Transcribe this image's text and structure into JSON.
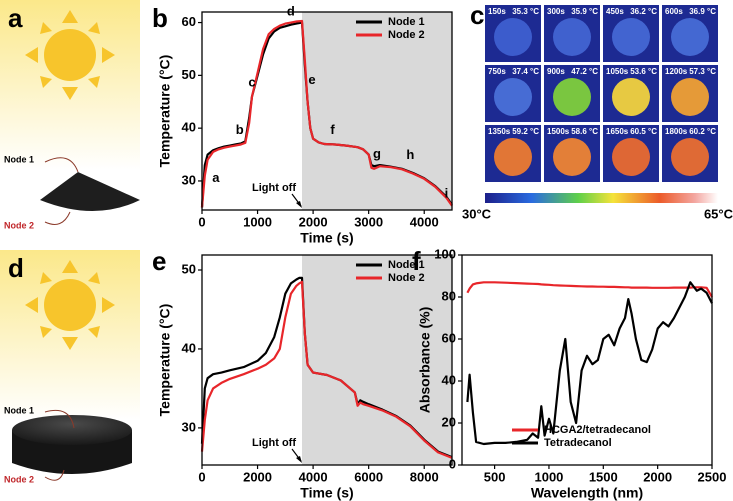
{
  "panels": {
    "a": {
      "letter": "a",
      "node1": "Node 1",
      "node2": "Node 2"
    },
    "c": {
      "letter": "c",
      "scale_min": "30°C",
      "scale_max": "65°C",
      "cells": [
        {
          "time": "150s",
          "temp": "35.3 °C",
          "color": "#3e5fd0"
        },
        {
          "time": "300s",
          "temp": "35.9 °C",
          "color": "#4264d2"
        },
        {
          "time": "450s",
          "temp": "36.2 °C",
          "color": "#4467d4"
        },
        {
          "time": "600s",
          "temp": "36.9 °C",
          "color": "#476bd6"
        },
        {
          "time": "750s",
          "temp": "37.4 °C",
          "color": "#4a70d8"
        },
        {
          "time": "900s",
          "temp": "47.2 °C",
          "color": "#7fcf3c"
        },
        {
          "time": "1050s",
          "temp": "53.6 °C",
          "color": "#f2d23e"
        },
        {
          "time": "1200s",
          "temp": "57.3 °C",
          "color": "#f0a034"
        },
        {
          "time": "1350s",
          "temp": "59.2 °C",
          "color": "#ec7a32"
        },
        {
          "time": "1500s",
          "temp": "58.6 °C",
          "color": "#ee8434"
        },
        {
          "time": "1650s",
          "temp": "60.5 °C",
          "color": "#e96a30"
        },
        {
          "time": "1800s",
          "temp": "60.2 °C",
          "color": "#ea6e30"
        }
      ]
    },
    "d": {
      "letter": "d",
      "node1": "Node 1",
      "node2": "Node 2"
    }
  },
  "chart_data": [
    {
      "type": "line",
      "panel_label": "b",
      "xlabel": "Time (s)",
      "ylabel": "Temperature (°C)",
      "xlim": [
        0,
        4500
      ],
      "ylim": [
        24.5,
        62
      ],
      "xticks": [
        0,
        1000,
        2000,
        3000,
        4000
      ],
      "yticks": [
        30,
        40,
        50,
        60
      ],
      "shade_from": 1800,
      "shade_color": "#d9d9d9",
      "light_label": "Light off",
      "legend": "upper right",
      "annotations": [
        "a",
        "b",
        "c",
        "d",
        "e",
        "f",
        "g",
        "h",
        "i"
      ],
      "x": [
        0,
        50,
        100,
        200,
        300,
        400,
        500,
        600,
        700,
        780,
        850,
        900,
        1000,
        1100,
        1200,
        1300,
        1400,
        1500,
        1600,
        1700,
        1800,
        1850,
        1900,
        1950,
        2000,
        2100,
        2200,
        2400,
        2600,
        2800,
        2900,
        3000,
        3050,
        3100,
        3200,
        3400,
        3600,
        3800,
        4000,
        4200,
        4400,
        4500
      ],
      "series": [
        {
          "name": "Node 1",
          "color": "#000000",
          "values": [
            25,
            33,
            35,
            35.8,
            36.2,
            36.5,
            36.7,
            36.9,
            37.1,
            37.5,
            42,
            46,
            50,
            54,
            57,
            58.3,
            59,
            59.3,
            59.6,
            59.8,
            60,
            52,
            45,
            40,
            38,
            37.3,
            37,
            36.9,
            36.7,
            36.4,
            36,
            35,
            33,
            32.8,
            33,
            32.7,
            32.3,
            31.5,
            30.5,
            29,
            27,
            25.5
          ]
        },
        {
          "name": "Node 2",
          "color": "#e8262a",
          "values": [
            25,
            31,
            34,
            35.5,
            36,
            36.3,
            36.5,
            36.7,
            36.9,
            37.2,
            41,
            46,
            50.5,
            55,
            57.8,
            58.8,
            59.4,
            59.8,
            60,
            60.2,
            60.3,
            53,
            45,
            40,
            38,
            37.3,
            37,
            36.9,
            36.7,
            36.4,
            36,
            35,
            32.5,
            32.3,
            32.8,
            32.6,
            32.2,
            31.4,
            30.4,
            28.9,
            26.8,
            25.3
          ]
        }
      ]
    },
    {
      "type": "line",
      "panel_label": "e",
      "xlabel": "Time (s)",
      "ylabel": "Temperature (°C)",
      "xlim": [
        0,
        9000
      ],
      "ylim": [
        25.3,
        51.9
      ],
      "xticks": [
        0,
        2000,
        4000,
        6000,
        8000
      ],
      "yticks": [
        30,
        40,
        50
      ],
      "shade_from": 3600,
      "shade_color": "#d9d9d9",
      "light_label": "Light off",
      "legend": "upper right",
      "x": [
        0,
        100,
        200,
        400,
        700,
        1000,
        1500,
        2000,
        2300,
        2600,
        2800,
        3000,
        3200,
        3400,
        3500,
        3600,
        3700,
        3800,
        4000,
        4500,
        5000,
        5500,
        5600,
        5700,
        5800,
        6000,
        6500,
        7000,
        7500,
        8000,
        8500,
        9000
      ],
      "series": [
        {
          "name": "Node 1",
          "color": "#000000",
          "values": [
            28,
            35,
            36.3,
            36.8,
            37,
            37.3,
            37.7,
            38.5,
            39.5,
            41.5,
            44,
            47,
            48.3,
            48.8,
            49,
            49,
            42,
            38,
            37,
            36.7,
            36,
            34.5,
            33,
            33.5,
            33.3,
            33,
            32.3,
            31.5,
            30.3,
            28.5,
            27,
            26.3
          ]
        },
        {
          "name": "Node 2",
          "color": "#e8262a",
          "values": [
            27,
            31,
            33.5,
            35,
            35.7,
            36.2,
            36.8,
            37.5,
            38,
            38.8,
            40,
            44,
            47,
            48,
            48.3,
            48.5,
            42,
            38,
            37,
            36.7,
            36,
            34.5,
            32.8,
            33.2,
            33,
            32.8,
            32.2,
            31.4,
            30.2,
            28.4,
            26.9,
            26.2
          ]
        }
      ]
    },
    {
      "type": "line",
      "panel_label": "f",
      "xlabel": "Wavelength (nm)",
      "ylabel": "Absorbance (%)",
      "xlim": [
        200,
        2500
      ],
      "ylim": [
        0,
        100
      ],
      "xticks": [
        500,
        1000,
        1500,
        2000,
        2500
      ],
      "yticks": [
        0,
        20,
        40,
        60,
        80,
        100
      ],
      "legend": "lower center",
      "x": [
        250,
        270,
        300,
        330,
        400,
        500,
        600,
        700,
        800,
        850,
        900,
        930,
        960,
        1000,
        1040,
        1100,
        1150,
        1200,
        1250,
        1300,
        1350,
        1400,
        1450,
        1500,
        1550,
        1600,
        1650,
        1700,
        1730,
        1760,
        1800,
        1850,
        1900,
        1950,
        2000,
        2050,
        2100,
        2150,
        2200,
        2250,
        2300,
        2330,
        2360,
        2400,
        2450,
        2500
      ],
      "series": [
        {
          "name": "HCGA2/tetradecanol",
          "color": "#e8262a",
          "values": [
            82,
            84,
            86,
            86.5,
            87,
            87,
            86.8,
            86.6,
            86.4,
            86.3,
            86.2,
            86,
            85.9,
            85.8,
            85.6,
            85.5,
            85.4,
            85.3,
            85.2,
            85.1,
            85,
            85,
            84.9,
            84.9,
            84.8,
            84.8,
            84.7,
            84.6,
            84.6,
            84.5,
            84.5,
            84.5,
            84.5,
            84.4,
            84.4,
            84.4,
            84.4,
            84.5,
            84.5,
            84.5,
            84.5,
            84.6,
            84.6,
            84.6,
            84.4,
            80
          ]
        },
        {
          "name": "Tetradecanol",
          "color": "#000000",
          "values": [
            30,
            43,
            25,
            11,
            10,
            10.5,
            10.5,
            11,
            12,
            15,
            13,
            28,
            14,
            22,
            15,
            45,
            60,
            30,
            20,
            45,
            52,
            48,
            50,
            60,
            62,
            57,
            65,
            70,
            79,
            72,
            60,
            50,
            49,
            55,
            65,
            68,
            66,
            70,
            75,
            80,
            87,
            85,
            83,
            84,
            82,
            77
          ]
        }
      ]
    }
  ]
}
